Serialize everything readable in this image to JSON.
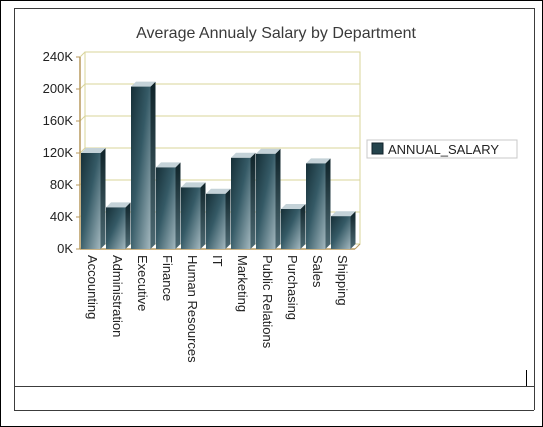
{
  "chart_data": {
    "type": "bar",
    "title": "Average Annualy Salary by Department",
    "xlabel": "",
    "ylabel": "",
    "ylim": [
      0,
      240000
    ],
    "yticks": [
      0,
      40000,
      80000,
      120000,
      160000,
      200000,
      240000
    ],
    "ytick_labels": [
      "0K",
      "40K",
      "80K",
      "120K",
      "160K",
      "200K",
      "240K"
    ],
    "categories": [
      "Accounting",
      "Administration",
      "Executive",
      "Finance",
      "Human Resources",
      "IT",
      "Marketing",
      "Public Relations",
      "Purchasing",
      "Sales",
      "Shipping"
    ],
    "series": [
      {
        "name": "ANNUAL_SALARY",
        "values": [
          120000,
          52000,
          203000,
          102000,
          77000,
          69000,
          114000,
          119000,
          50000,
          107000,
          41000
        ]
      }
    ],
    "grid": true,
    "legend_position": "right",
    "colors": {
      "bar_dark": "#1b3a44",
      "bar_light": "#93a9b2",
      "bar_top": "#c4d2d8",
      "grid": "#d9d49a",
      "axis": "#b89a5e",
      "legend_swatch": "#24434c"
    }
  }
}
